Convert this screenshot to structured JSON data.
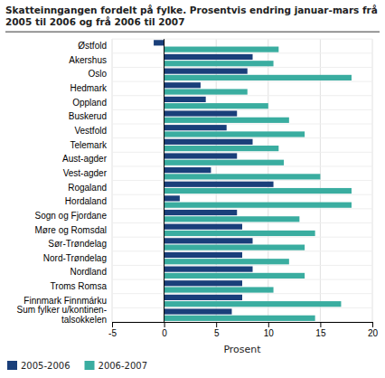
{
  "chart_data": {
    "type": "bar",
    "orientation": "horizontal",
    "title": "Skatteinngangen fordelt på fylke. Prosentvis endring januar-mars frå\n2005 til 2006 og frå 2006 til 2007",
    "categories": [
      "Østfold",
      "Akershus",
      "Oslo",
      "Hedmark",
      "Oppland",
      "Buskerud",
      "Vestfold",
      "Telemark",
      "Aust-agder",
      "Vest-agder",
      "Rogaland",
      "Hordaland",
      "Sogn og Fjordane",
      "Møre og Romsdal",
      "Sør-Trøndelag",
      "Nord-Trøndelag",
      "Nordland",
      "Troms Romsa",
      "Finnmark Finnmárku",
      "Sum fylker u/kontinen-\ntalsokkelen"
    ],
    "series": [
      {
        "name": "2005-2006",
        "color": "#1a3f7a",
        "values": [
          -1.0,
          8.5,
          8.0,
          3.5,
          4.0,
          7.0,
          6.0,
          8.5,
          7.0,
          4.5,
          10.5,
          1.5,
          7.0,
          7.5,
          8.5,
          7.5,
          8.5,
          7.5,
          7.5,
          6.5
        ]
      },
      {
        "name": "2006-2007",
        "color": "#3aada0",
        "values": [
          11.0,
          10.5,
          18.0,
          8.0,
          10.0,
          12.0,
          13.5,
          11.0,
          11.5,
          15.0,
          18.0,
          18.0,
          13.0,
          14.5,
          13.5,
          12.0,
          13.5,
          10.5,
          17.0,
          14.5
        ]
      }
    ],
    "xlabel": "Prosent",
    "xlim": [
      -5,
      20
    ],
    "xticks": [
      -5,
      0,
      5,
      10,
      15,
      20
    ],
    "grid": true,
    "legend": "bottom"
  }
}
